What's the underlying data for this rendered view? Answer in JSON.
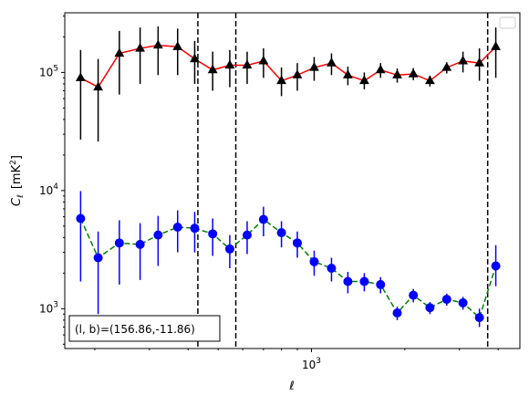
{
  "chart_data": {
    "type": "line",
    "x_scale": "log",
    "y_scale": "log",
    "xlim": [
      160,
      4700
    ],
    "ylim": [
      460,
      320000
    ],
    "xlabel": "ℓ",
    "ylabel_main": "C",
    "ylabel_sub": "ℓ",
    "ylabel_unit_prefix": "[mK",
    "ylabel_unit_exp": "2",
    "ylabel_unit_suffix": "]",
    "x_ticks": [
      {
        "value": 1000,
        "base": "10",
        "exp": "3"
      }
    ],
    "y_ticks": [
      {
        "value": 1000,
        "base": "10",
        "exp": "3"
      },
      {
        "value": 10000,
        "base": "10",
        "exp": "4"
      },
      {
        "value": 100000,
        "base": "10",
        "exp": "5"
      }
    ],
    "vlines": [
      430,
      570,
      3700
    ],
    "annotation_text": "(l, b)=(156.86,-11.86)",
    "legend_placement": "top-right",
    "series": [
      {
        "color": "#ff0000",
        "line_style": "solid",
        "marker": "triangle",
        "marker_color": "#000000",
        "errorbar_color": "#000000",
        "points": [
          {
            "x": 180,
            "y": 90000,
            "lo": 27000,
            "hi": 155000
          },
          {
            "x": 205,
            "y": 75000,
            "lo": 26000,
            "hi": 130000
          },
          {
            "x": 240,
            "y": 145000,
            "lo": 65000,
            "hi": 225000
          },
          {
            "x": 280,
            "y": 160000,
            "lo": 80000,
            "hi": 240000
          },
          {
            "x": 320,
            "y": 170000,
            "lo": 95000,
            "hi": 245000
          },
          {
            "x": 370,
            "y": 165000,
            "lo": 95000,
            "hi": 235000
          },
          {
            "x": 420,
            "y": 130000,
            "lo": 80000,
            "hi": 185000
          },
          {
            "x": 480,
            "y": 105000,
            "lo": 70000,
            "hi": 150000
          },
          {
            "x": 545,
            "y": 115000,
            "lo": 75000,
            "hi": 155000
          },
          {
            "x": 620,
            "y": 115000,
            "lo": 80000,
            "hi": 150000
          },
          {
            "x": 700,
            "y": 125000,
            "lo": 90000,
            "hi": 160000
          },
          {
            "x": 800,
            "y": 85000,
            "lo": 63000,
            "hi": 110000
          },
          {
            "x": 900,
            "y": 95000,
            "lo": 70000,
            "hi": 120000
          },
          {
            "x": 1020,
            "y": 110000,
            "lo": 85000,
            "hi": 135000
          },
          {
            "x": 1160,
            "y": 120000,
            "lo": 95000,
            "hi": 145000
          },
          {
            "x": 1310,
            "y": 95000,
            "lo": 78000,
            "hi": 112000
          },
          {
            "x": 1480,
            "y": 85000,
            "lo": 72000,
            "hi": 100000
          },
          {
            "x": 1670,
            "y": 105000,
            "lo": 90000,
            "hi": 120000
          },
          {
            "x": 1890,
            "y": 95000,
            "lo": 82000,
            "hi": 108000
          },
          {
            "x": 2130,
            "y": 97000,
            "lo": 86000,
            "hi": 109000
          },
          {
            "x": 2410,
            "y": 85000,
            "lo": 76000,
            "hi": 94000
          },
          {
            "x": 2730,
            "y": 110000,
            "lo": 98000,
            "hi": 122000
          },
          {
            "x": 3080,
            "y": 125000,
            "lo": 100000,
            "hi": 150000
          },
          {
            "x": 3480,
            "y": 120000,
            "lo": 85000,
            "hi": 160000
          },
          {
            "x": 3930,
            "y": 165000,
            "lo": 90000,
            "hi": 240000
          }
        ]
      },
      {
        "color": "#008000",
        "line_style": "dashed",
        "marker": "circle",
        "marker_color": "#0000ff",
        "errorbar_color": "#0000ff",
        "points": [
          {
            "x": 180,
            "y": 5800,
            "lo": 1700,
            "hi": 9900
          },
          {
            "x": 205,
            "y": 2700,
            "lo": 900,
            "hi": 4500
          },
          {
            "x": 240,
            "y": 3600,
            "lo": 1600,
            "hi": 5600
          },
          {
            "x": 280,
            "y": 3500,
            "lo": 1750,
            "hi": 5300
          },
          {
            "x": 320,
            "y": 4200,
            "lo": 2300,
            "hi": 6100
          },
          {
            "x": 370,
            "y": 4900,
            "lo": 3000,
            "hi": 6800
          },
          {
            "x": 420,
            "y": 4800,
            "lo": 3000,
            "hi": 6600
          },
          {
            "x": 480,
            "y": 4300,
            "lo": 2800,
            "hi": 5800
          },
          {
            "x": 545,
            "y": 3200,
            "lo": 2200,
            "hi": 4200
          },
          {
            "x": 620,
            "y": 4200,
            "lo": 2900,
            "hi": 5500
          },
          {
            "x": 700,
            "y": 5700,
            "lo": 4100,
            "hi": 7300
          },
          {
            "x": 800,
            "y": 4400,
            "lo": 3300,
            "hi": 5500
          },
          {
            "x": 900,
            "y": 3600,
            "lo": 2700,
            "hi": 4500
          },
          {
            "x": 1020,
            "y": 2500,
            "lo": 1900,
            "hi": 3100
          },
          {
            "x": 1160,
            "y": 2200,
            "lo": 1700,
            "hi": 2700
          },
          {
            "x": 1310,
            "y": 1700,
            "lo": 1350,
            "hi": 2050
          },
          {
            "x": 1480,
            "y": 1700,
            "lo": 1400,
            "hi": 2000
          },
          {
            "x": 1670,
            "y": 1600,
            "lo": 1350,
            "hi": 1850
          },
          {
            "x": 1890,
            "y": 920,
            "lo": 800,
            "hi": 1040
          },
          {
            "x": 2130,
            "y": 1300,
            "lo": 1130,
            "hi": 1470
          },
          {
            "x": 2410,
            "y": 1020,
            "lo": 900,
            "hi": 1140
          },
          {
            "x": 2730,
            "y": 1200,
            "lo": 1060,
            "hi": 1340
          },
          {
            "x": 3080,
            "y": 1120,
            "lo": 980,
            "hi": 1260
          },
          {
            "x": 3480,
            "y": 840,
            "lo": 700,
            "hi": 1000
          },
          {
            "x": 3930,
            "y": 2300,
            "lo": 1550,
            "hi": 3450
          }
        ]
      }
    ]
  }
}
